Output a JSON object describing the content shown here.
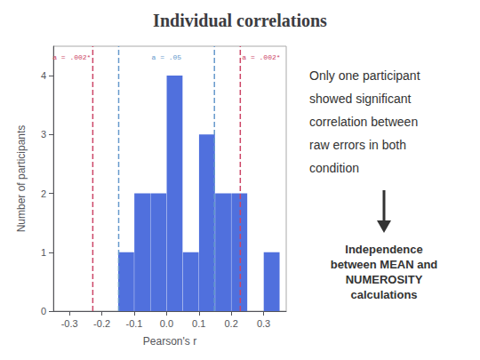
{
  "chart_data": {
    "type": "histogram",
    "title": "Individual correlations",
    "xlabel": "Pearson's r",
    "ylabel": "Number of participants",
    "bins": [
      -0.15,
      -0.1,
      -0.05,
      0.0,
      0.05,
      0.1,
      0.15,
      0.2,
      0.25,
      0.3,
      0.35
    ],
    "values": [
      1,
      2,
      2,
      4,
      1,
      3,
      2,
      2,
      0,
      1
    ],
    "xlim": [
      -0.35,
      0.37
    ],
    "xticks": [
      -0.3,
      -0.2,
      -0.1,
      {
        "value": 0.0,
        "label": "0.0"
      },
      0.1,
      0.2,
      0.3
    ],
    "ylim": [
      0,
      4.5
    ],
    "yticks": [
      0,
      1,
      2,
      3,
      4
    ],
    "grid": false,
    "vlines": [
      {
        "x": -0.228,
        "color": "#cc4466",
        "line_style": "dashed",
        "label": "a = .002*"
      },
      {
        "x": 0.228,
        "color": "#cc4466",
        "line_style": "dashed",
        "label": "a = .002*"
      },
      {
        "x": -0.148,
        "color": "#6699cc",
        "line_style": "dashed"
      },
      {
        "x": 0.148,
        "color": "#6699cc",
        "line_style": "dashed"
      }
    ],
    "annotations": [
      {
        "text": "a = .05",
        "color": "#6699cc"
      },
      {
        "text": "Only one participant\nshowed significant\ncorrelation between\nraw errors in both\ncondition"
      },
      {
        "text": "Independence\nbetween MEAN and\nNUMEROSITY\ncalculations"
      }
    ]
  }
}
